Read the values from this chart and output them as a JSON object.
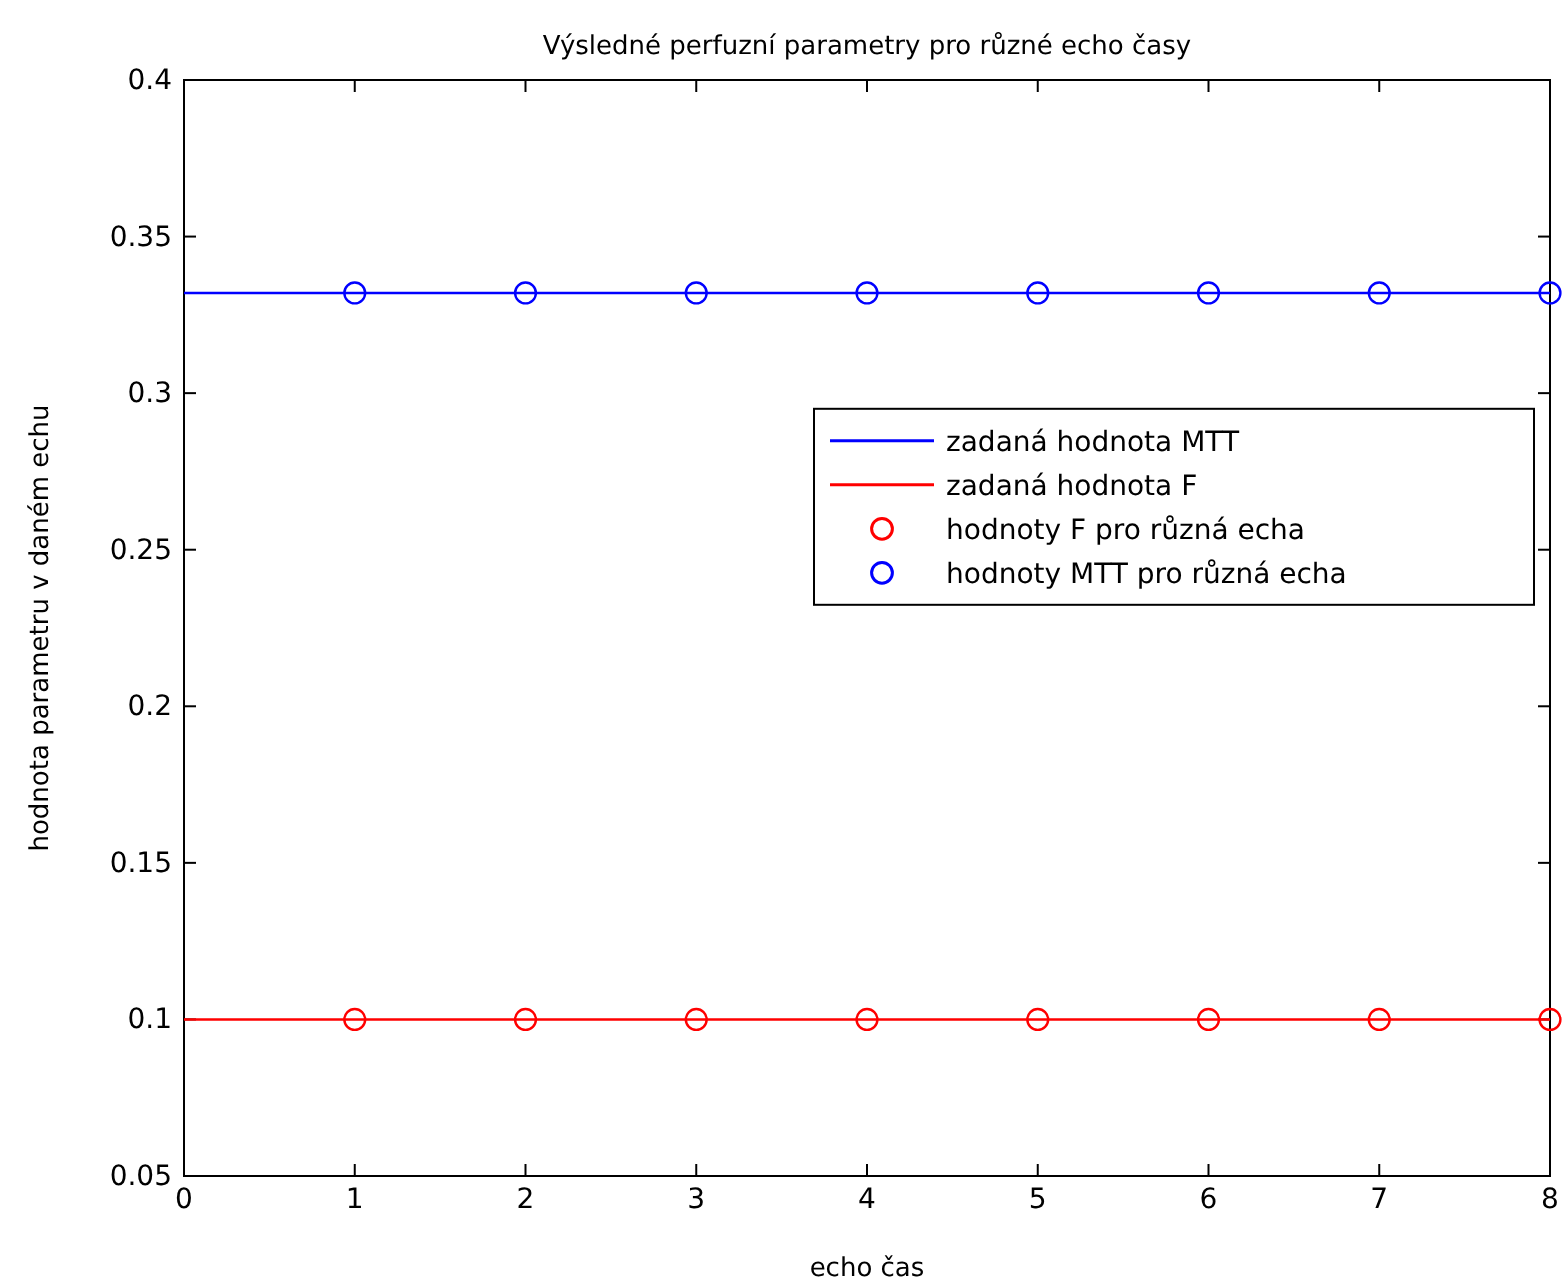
{
  "chart_data": {
    "type": "line",
    "title": "Výsledné perfuzní parametry pro různé echo časy",
    "xlabel": "echo čas",
    "ylabel": "hodnota parametru v daném echu",
    "xlim": [
      0,
      8
    ],
    "xticks": [
      0,
      1,
      2,
      3,
      4,
      5,
      6,
      7,
      8
    ],
    "ylim": [
      0.05,
      0.4
    ],
    "yticks": [
      0.05,
      0.1,
      0.15,
      0.2,
      0.25,
      0.3,
      0.35,
      0.4
    ],
    "grid": false,
    "legend": "right",
    "series": [
      {
        "name": "zadaná hodnota MTT",
        "color": "#0000ff",
        "x": [
          0,
          8
        ],
        "values": [
          0.332,
          0.332
        ],
        "marker": "none",
        "line_style": "solid"
      },
      {
        "name": "zadaná hodnota F",
        "color": "#ff0000",
        "x": [
          0,
          8
        ],
        "values": [
          0.1,
          0.1
        ],
        "marker": "none",
        "line_style": "solid"
      },
      {
        "name": "hodnoty F pro různá echa",
        "type": "scatter",
        "color": "#ff0000",
        "x": [
          1,
          2,
          3,
          4,
          5,
          6,
          7,
          8
        ],
        "values": [
          0.1,
          0.1,
          0.1,
          0.1,
          0.1,
          0.1,
          0.1,
          0.1
        ],
        "marker": "circle"
      },
      {
        "name": "hodnoty MTT pro různá echa",
        "type": "scatter",
        "color": "#0000ff",
        "x": [
          1,
          2,
          3,
          4,
          5,
          6,
          7,
          8
        ],
        "values": [
          0.332,
          0.332,
          0.332,
          0.332,
          0.332,
          0.332,
          0.332,
          0.332
        ],
        "marker": "circle"
      }
    ]
  }
}
